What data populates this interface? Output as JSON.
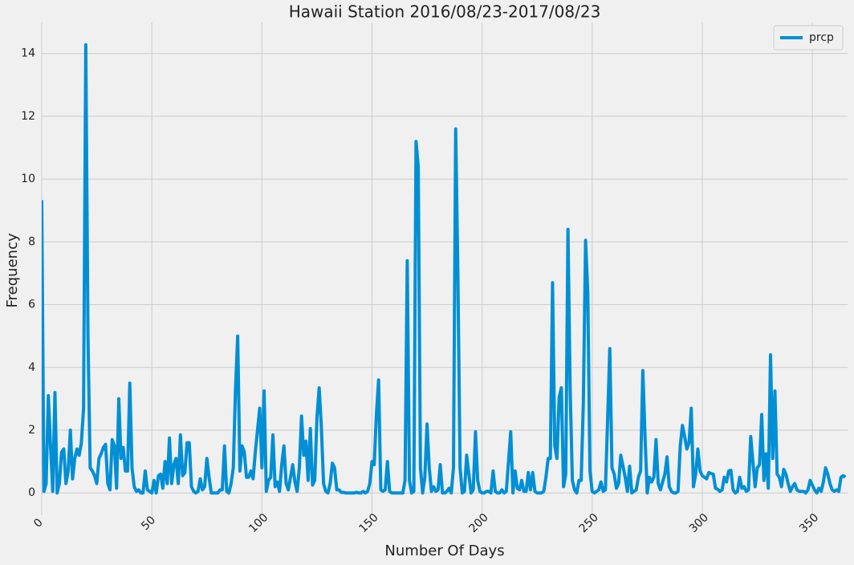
{
  "chart_data": {
    "type": "line",
    "title": "Hawaii Station 2016/08/23-2017/08/23",
    "x_label": "Number Of Days",
    "y_label": "Frequency",
    "x": [
      0,
      1,
      2,
      3,
      4,
      5,
      6,
      7,
      8,
      9,
      10,
      11,
      12,
      13,
      14,
      15,
      16,
      17,
      18,
      19,
      20,
      21,
      22,
      23,
      24,
      25,
      26,
      27,
      28,
      29,
      30,
      31,
      32,
      33,
      34,
      35,
      36,
      37,
      38,
      39,
      40,
      41,
      42,
      43,
      44,
      45,
      46,
      47,
      48,
      49,
      50,
      51,
      52,
      53,
      54,
      55,
      56,
      57,
      58,
      59,
      60,
      61,
      62,
      63,
      64,
      65,
      66,
      67,
      68,
      69,
      70,
      71,
      72,
      73,
      74,
      75,
      76,
      77,
      78,
      79,
      80,
      81,
      82,
      83,
      84,
      85,
      86,
      87,
      88,
      89,
      90,
      91,
      92,
      93,
      94,
      95,
      96,
      97,
      98,
      99,
      100,
      101,
      102,
      103,
      104,
      105,
      106,
      107,
      108,
      109,
      110,
      111,
      112,
      113,
      114,
      115,
      116,
      117,
      118,
      119,
      120,
      121,
      122,
      123,
      124,
      125,
      126,
      127,
      128,
      129,
      130,
      131,
      132,
      133,
      134,
      135,
      136,
      137,
      138,
      139,
      140,
      141,
      142,
      143,
      144,
      145,
      146,
      147,
      148,
      149,
      150,
      151,
      152,
      153,
      154,
      155,
      156,
      157,
      158,
      159,
      160,
      161,
      162,
      163,
      164,
      165,
      166,
      167,
      168,
      169,
      170,
      171,
      172,
      173,
      174,
      175,
      176,
      177,
      178,
      179,
      180,
      181,
      182,
      183,
      184,
      185,
      186,
      187,
      188,
      189,
      190,
      191,
      192,
      193,
      194,
      195,
      196,
      197,
      198,
      199,
      200,
      201,
      202,
      203,
      204,
      205,
      206,
      207,
      208,
      209,
      210,
      211,
      212,
      213,
      214,
      215,
      216,
      217,
      218,
      219,
      220,
      221,
      222,
      223,
      224,
      225,
      226,
      227,
      228,
      229,
      230,
      231,
      232,
      233,
      234,
      235,
      236,
      237,
      238,
      239,
      240,
      241,
      242,
      243,
      244,
      245,
      246,
      247,
      248,
      249,
      250,
      251,
      252,
      253,
      254,
      255,
      256,
      257,
      258,
      259,
      260,
      261,
      262,
      263,
      264,
      265,
      266,
      267,
      268,
      269,
      270,
      271,
      272,
      273,
      274,
      275,
      276,
      277,
      278,
      279,
      280,
      281,
      282,
      283,
      284,
      285,
      286,
      287,
      288,
      289,
      290,
      291,
      292,
      293,
      294,
      295,
      296,
      297,
      298,
      299,
      300,
      301,
      302,
      303,
      304,
      305,
      306,
      307,
      308,
      309,
      310,
      311,
      312,
      313,
      314,
      315,
      316,
      317,
      318,
      319,
      320,
      321,
      322,
      323,
      324,
      325,
      326,
      327,
      328,
      329,
      330,
      331,
      332,
      333,
      334,
      335,
      336,
      337,
      338,
      339,
      340,
      341,
      342,
      343,
      344,
      345,
      346,
      347,
      348,
      349,
      350,
      351,
      352,
      353,
      354,
      355,
      356,
      357,
      358,
      359,
      360,
      361,
      362,
      363,
      364,
      365
    ],
    "series": [
      {
        "name": "prcp",
        "color": "#008fd5",
        "values": [
          9.33,
          0.05,
          0.3,
          3.1,
          1.5,
          0.05,
          3.2,
          0,
          0.3,
          1.3,
          1.4,
          0.3,
          0.7,
          2.0,
          0.45,
          1.1,
          1.4,
          1.2,
          1.6,
          2.7,
          14.28,
          5,
          0.8,
          0.7,
          0.55,
          0.3,
          1.1,
          1.25,
          1.45,
          1.55,
          0.3,
          0.1,
          1.7,
          1.5,
          0.15,
          3.0,
          1.1,
          1.45,
          0.7,
          0.7,
          3.5,
          0.8,
          0.2,
          0.05,
          0.1,
          0,
          0,
          0.7,
          0.1,
          0.05,
          0,
          0.4,
          0,
          0.55,
          0.6,
          0.15,
          1.0,
          0.3,
          1.75,
          0.3,
          0.9,
          1.1,
          0.3,
          1.85,
          0.55,
          0.65,
          1.6,
          1.6,
          0.2,
          0.05,
          0,
          0.05,
          0.45,
          0.1,
          0.2,
          1.1,
          0.5,
          0,
          0,
          0,
          0,
          0.1,
          0.1,
          1.5,
          0.05,
          0,
          0.3,
          0.8,
          3.3,
          5.0,
          0.7,
          1.5,
          1.3,
          0.5,
          0.5,
          0.7,
          0.45,
          1.3,
          2.0,
          2.7,
          0.8,
          3.25,
          0.05,
          0.4,
          0.5,
          1.85,
          0.2,
          0.35,
          0.05,
          0.9,
          1.5,
          0.3,
          0.1,
          0.5,
          0.9,
          0.35,
          0.05,
          0.8,
          2.45,
          1.2,
          1.65,
          0.4,
          2.05,
          0.25,
          0.4,
          2.4,
          3.35,
          2.1,
          0.3,
          0.05,
          0,
          0.3,
          0.95,
          0.8,
          0.1,
          0.1,
          0.02,
          0.02,
          0,
          0,
          0,
          0,
          0,
          0.02,
          0,
          0,
          0.05,
          0,
          0.05,
          0.3,
          1.0,
          0.9,
          2.5,
          3.6,
          0.1,
          0.05,
          0.1,
          1.0,
          0.05,
          0,
          0,
          0,
          0,
          0,
          0,
          0.4,
          7.4,
          0.4,
          0,
          0.05,
          11.2,
          10.4,
          0.8,
          0,
          0.5,
          2.2,
          0.8,
          0.05,
          0.2,
          0.05,
          0.1,
          0.9,
          0,
          0,
          0.05,
          0.15,
          0,
          0.8,
          11.6,
          7,
          0.8,
          0,
          0.05,
          1.2,
          0.6,
          0,
          0.1,
          1.95,
          0.4,
          0.05,
          0,
          0,
          0.05,
          0.05,
          0,
          0.7,
          0.05,
          0,
          0,
          0.1,
          0,
          0.05,
          1.0,
          1.95,
          0,
          0.7,
          0.15,
          0.1,
          0.4,
          0.05,
          0.05,
          0.65,
          0.1,
          0.65,
          0.05,
          0,
          0,
          0,
          0.05,
          0.5,
          1.1,
          1.1,
          6.7,
          1.5,
          1.1,
          3.05,
          3.35,
          0.2,
          0.6,
          8.4,
          3.3,
          0.4,
          0.1,
          0,
          0.4,
          0.4,
          2.9,
          8.05,
          6.4,
          0.7,
          0.05,
          0,
          0.05,
          0.1,
          0.35,
          0.05,
          0.1,
          2.3,
          4.6,
          0.8,
          0.6,
          0.15,
          0.3,
          1.2,
          0.85,
          0.5,
          0.05,
          0.85,
          0,
          0.05,
          0.1,
          0.5,
          0.7,
          3.9,
          1.8,
          0,
          0.5,
          0.35,
          0.5,
          1.7,
          0.3,
          0.1,
          0.35,
          0.6,
          1.15,
          0.2,
          0.05,
          0,
          0,
          0.05,
          1.5,
          2.15,
          1.8,
          1.4,
          1.6,
          2.7,
          0.2,
          0.6,
          1.4,
          0.7,
          0.55,
          0.5,
          0.45,
          0.65,
          0.62,
          0.6,
          0.15,
          0.12,
          0.05,
          0.1,
          0.5,
          0.35,
          0.7,
          0.72,
          0.1,
          0,
          0.05,
          0.5,
          0.15,
          0.2,
          0.05,
          0.1,
          1.8,
          1.0,
          0.2,
          0.8,
          0.9,
          2.5,
          0.4,
          1.25,
          0.15,
          4.4,
          1.1,
          3.25,
          0.6,
          0.5,
          0.2,
          0.75,
          0.6,
          0.3,
          0.05,
          0.2,
          0.3,
          0.1,
          0.05,
          0.05,
          0.05,
          0,
          0.1,
          0.4,
          0.25,
          0.1,
          0,
          0.15,
          0.05,
          0.35,
          0.8,
          0.6,
          0.3,
          0.1,
          0.05,
          0.1,
          0.05,
          0.5,
          0.55,
          0.5
        ]
      }
    ],
    "xlim": [
      0,
      366
    ],
    "ylim": [
      -0.71,
      14.99
    ],
    "xticks": [
      0,
      50,
      100,
      150,
      200,
      250,
      300,
      350
    ],
    "yticks": [
      0,
      2,
      4,
      6,
      8,
      10,
      12,
      14
    ],
    "grid": true,
    "legend": "upper right"
  }
}
